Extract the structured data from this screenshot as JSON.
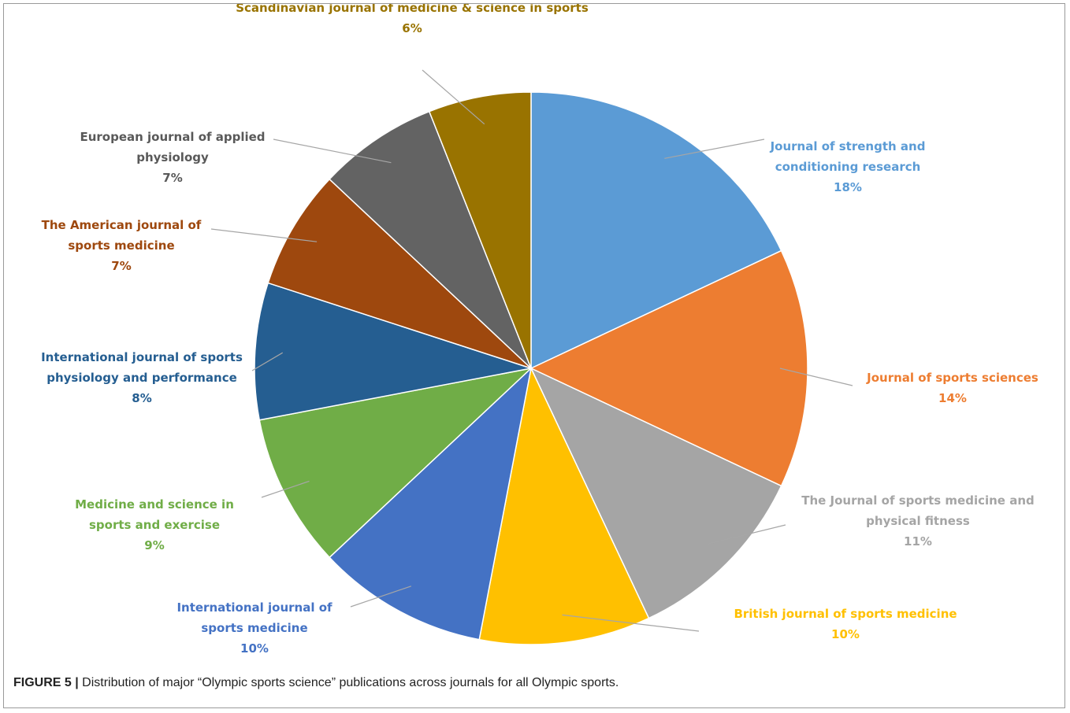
{
  "figure": {
    "label": "FIGURE 5 |",
    "text": " Distribution of major “Olympic sports science” publications across journals for all Olympic sports."
  },
  "chart_data": {
    "type": "pie",
    "start_angle_deg": 0,
    "direction": "clockwise",
    "slices": [
      {
        "name": "Journal of strength and conditioning research",
        "lines": [
          "Journal of strength and",
          "conditioning research"
        ],
        "value": 18,
        "pct": "18%",
        "color": "#5b9bd5",
        "label_color": "#5b9bd5"
      },
      {
        "name": "Journal of sports sciences",
        "lines": [
          "Journal of sports sciences"
        ],
        "value": 14,
        "pct": "14%",
        "color": "#ed7d31",
        "label_color": "#ed7d31"
      },
      {
        "name": "The Journal of sports medicine and physical fitness",
        "lines": [
          "The Journal of sports medicine and",
          "physical fitness"
        ],
        "value": 11,
        "pct": "11%",
        "color": "#a5a5a5",
        "label_color": "#a5a5a5"
      },
      {
        "name": "British journal of sports medicine",
        "lines": [
          "British journal of sports medicine"
        ],
        "value": 10,
        "pct": "10%",
        "color": "#ffc000",
        "label_color": "#ffc000"
      },
      {
        "name": "International journal of sports medicine",
        "lines": [
          "International journal of",
          "sports medicine"
        ],
        "value": 10,
        "pct": "10%",
        "color": "#4472c4",
        "label_color": "#4472c4"
      },
      {
        "name": "Medicine and science in sports and exercise",
        "lines": [
          "Medicine and science in",
          "sports and exercise"
        ],
        "value": 9,
        "pct": "9%",
        "color": "#70ad47",
        "label_color": "#70ad47"
      },
      {
        "name": "International journal of sports physiology and performance",
        "lines": [
          "International journal of sports",
          "physiology and performance"
        ],
        "value": 8,
        "pct": "8%",
        "color": "#255e91",
        "label_color": "#255e91"
      },
      {
        "name": "The American journal of sports medicine",
        "lines": [
          "The American journal of",
          "sports medicine"
        ],
        "value": 7,
        "pct": "7%",
        "color": "#9e480e",
        "label_color": "#9e480e"
      },
      {
        "name": "European journal of applied physiology",
        "lines": [
          "European journal of applied",
          "physiology"
        ],
        "value": 7,
        "pct": "7%",
        "color": "#636363",
        "label_color": "#595959"
      },
      {
        "name": "Scandinavian journal of medicine & science in sports",
        "lines": [
          "Scandinavian journal of medicine & science in sports"
        ],
        "value": 6,
        "pct": "6%",
        "color": "#997300",
        "label_color": "#997300"
      }
    ]
  }
}
